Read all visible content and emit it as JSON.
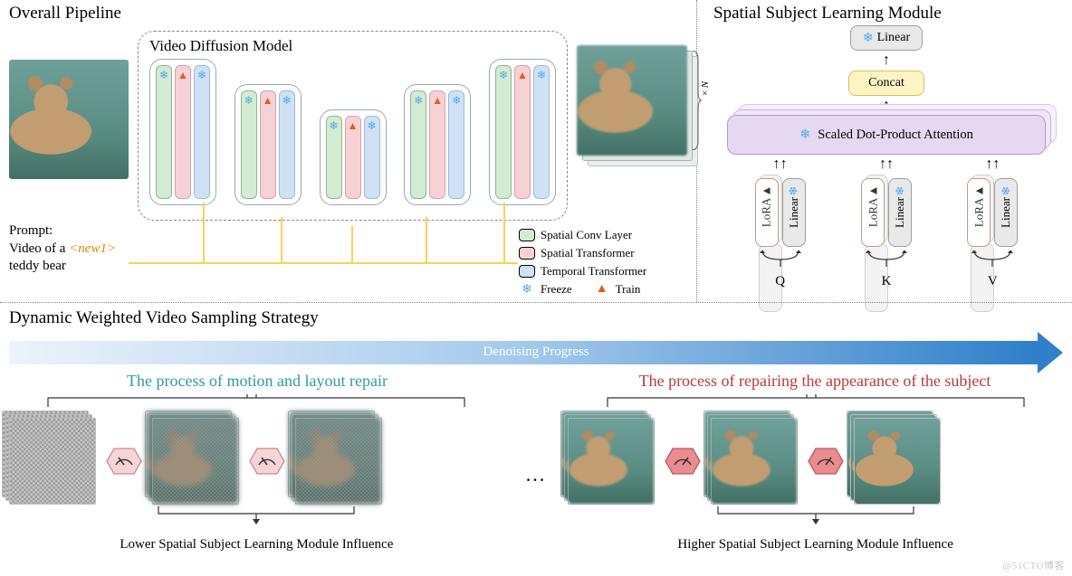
{
  "sections": {
    "pipeline_title": "Overall Pipeline",
    "ssl_title": "Spatial Subject Learning Module",
    "sampling_title": "Dynamic Weighted Video Sampling Strategy"
  },
  "diffusion": {
    "box_title": "Video Diffusion Model",
    "blocks": [
      {
        "size": "h0",
        "bars": [
          {
            "type": "sconv",
            "icon": "snow"
          },
          {
            "type": "strans",
            "icon": "flame"
          },
          {
            "type": "ttrans",
            "icon": "snow"
          }
        ]
      },
      {
        "size": "h1",
        "bars": [
          {
            "type": "sconv",
            "icon": "snow"
          },
          {
            "type": "strans",
            "icon": "flame"
          },
          {
            "type": "ttrans",
            "icon": "snow"
          }
        ]
      },
      {
        "size": "h2",
        "bars": [
          {
            "type": "sconv",
            "icon": "snow"
          },
          {
            "type": "strans",
            "icon": "flame"
          },
          {
            "type": "ttrans",
            "icon": "snow"
          }
        ]
      },
      {
        "size": "h1",
        "bars": [
          {
            "type": "sconv",
            "icon": "snow"
          },
          {
            "type": "strans",
            "icon": "flame"
          },
          {
            "type": "ttrans",
            "icon": "snow"
          }
        ]
      },
      {
        "size": "h0",
        "bars": [
          {
            "type": "sconv",
            "icon": "snow"
          },
          {
            "type": "strans",
            "icon": "flame"
          },
          {
            "type": "ttrans",
            "icon": "snow"
          }
        ]
      }
    ],
    "output_label": "× N"
  },
  "prompt": {
    "label": "Prompt:",
    "line1_pre": "Video of a ",
    "token": "<new1>",
    "line2": "teddy bear"
  },
  "legend": {
    "spatial_conv": "Spatial Conv Layer",
    "spatial_trans": "Spatial Transformer",
    "temporal_trans": "Temporal Transformer",
    "freeze": "Freeze",
    "train": "Train"
  },
  "ssl": {
    "linear_top": "Linear",
    "concat": "Concat",
    "attention": "Scaled Dot-Product Attention",
    "lora": "LoRA",
    "linear": "Linear",
    "Q": "Q",
    "K": "K",
    "V": "V"
  },
  "sampling": {
    "progress_label": "Denoising Progress",
    "phase1": "The process of motion and layout repair",
    "phase2": "The process of repairing the appearance of the subject",
    "caption_low": "Lower Spatial Subject Learning Module Influence",
    "caption_high": "Higher Spatial Subject Learning Module Influence",
    "ellipsis": "..."
  },
  "colors": {
    "spatial_conv": "#d3ebd3",
    "spatial_trans": "#f6d2d6",
    "temporal_trans": "#cfe2f5",
    "attention": "#e5d9f2",
    "concat": "#fff5c4",
    "flame": "#e55b13",
    "snow": "#55a7e6",
    "gauge_low": "#f7d4d7",
    "gauge_high": "#e98b8f",
    "phase1": "#2d9ba0",
    "phase2": "#b93a37",
    "prompt_line": "#ffcf55",
    "progress_start": "#ecf3fb",
    "progress_end": "#2f7fc9"
  },
  "watermark": "@51CTO博客"
}
